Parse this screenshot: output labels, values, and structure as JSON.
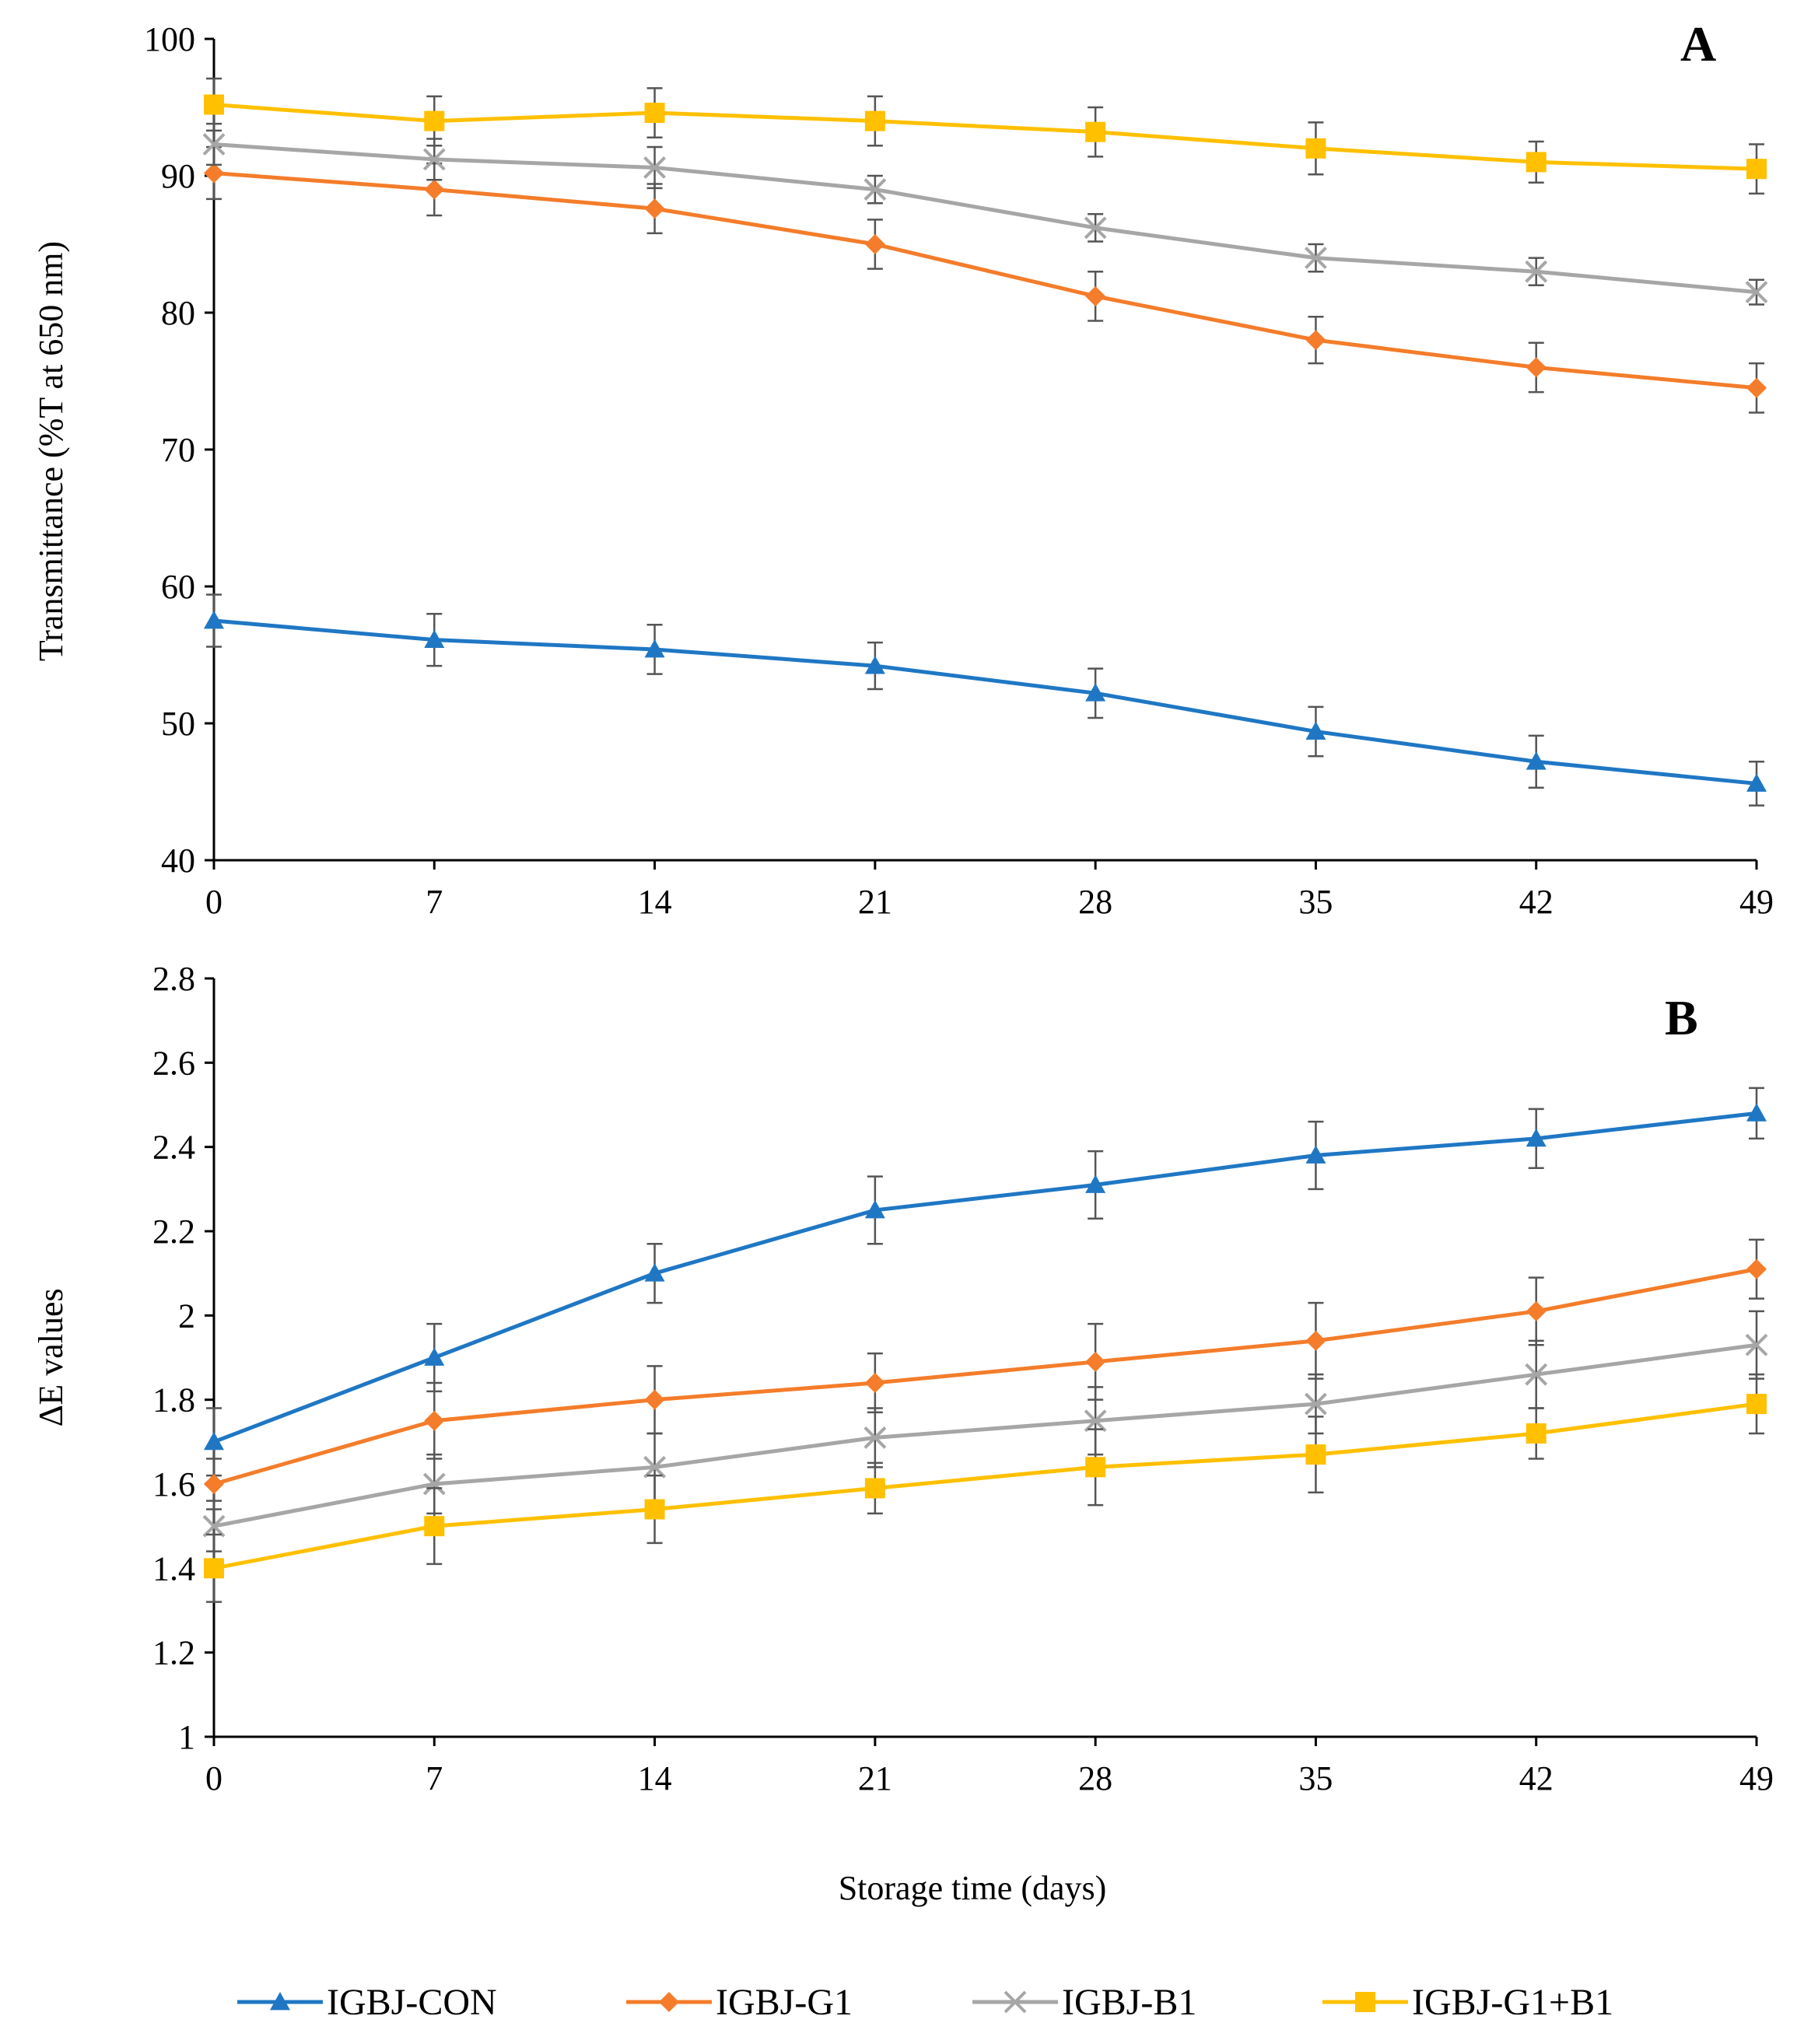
{
  "chart_data": [
    {
      "type": "line",
      "panel_label": "A",
      "title": "",
      "xlabel": "",
      "ylabel": "Transmittance (%T at 650 nm)",
      "x": [
        0,
        7,
        14,
        21,
        28,
        35,
        42,
        49
      ],
      "x_tick_labels": [
        "0",
        "7",
        "14",
        "21",
        "28",
        "35",
        "42",
        "49"
      ],
      "ylim": [
        40,
        100
      ],
      "y_ticks": [
        40,
        50,
        60,
        70,
        80,
        90,
        100
      ],
      "y_tick_labels": [
        "40",
        "50",
        "60",
        "70",
        "80",
        "90",
        "100"
      ],
      "grid": false,
      "series": [
        {
          "name": "IGBJ-CON",
          "marker": "triangle",
          "color": "#1f77c4",
          "values": [
            57.5,
            56.1,
            55.4,
            54.2,
            52.2,
            49.4,
            47.2,
            45.6
          ],
          "errors": [
            1.9,
            1.9,
            1.8,
            1.7,
            1.8,
            1.8,
            1.9,
            1.6
          ]
        },
        {
          "name": "IGBJ-G1",
          "marker": "diamond",
          "color": "#f47c2a",
          "values": [
            90.2,
            89.0,
            87.6,
            85.0,
            81.2,
            78.0,
            76.0,
            74.5
          ],
          "errors": [
            1.9,
            1.9,
            1.8,
            1.8,
            1.8,
            1.7,
            1.8,
            1.8
          ]
        },
        {
          "name": "IGBJ-B1",
          "marker": "x",
          "color": "#a6a6a6",
          "values": [
            92.3,
            91.2,
            90.6,
            89.0,
            86.2,
            84.0,
            83.0,
            81.5
          ],
          "errors": [
            1.5,
            1.5,
            1.5,
            1.0,
            1.0,
            1.0,
            1.0,
            0.9
          ]
        },
        {
          "name": "IGBJ-G1+B1",
          "marker": "square",
          "color": "#ffc000",
          "values": [
            95.2,
            94.0,
            94.6,
            94.0,
            93.2,
            92.0,
            91.0,
            90.5
          ],
          "errors": [
            1.9,
            1.8,
            1.8,
            1.8,
            1.8,
            1.9,
            1.5,
            1.8
          ]
        }
      ]
    },
    {
      "type": "line",
      "panel_label": "B",
      "title": "",
      "xlabel": "Storage time (days)",
      "ylabel": "∆E values",
      "x": [
        0,
        7,
        14,
        21,
        28,
        35,
        42,
        49
      ],
      "x_tick_labels": [
        "0",
        "7",
        "14",
        "21",
        "28",
        "35",
        "42",
        "49"
      ],
      "ylim": [
        1,
        2.8
      ],
      "y_ticks": [
        1,
        1.2,
        1.4,
        1.6,
        1.8,
        2,
        2.2,
        2.4,
        2.6,
        2.8
      ],
      "y_tick_labels": [
        "1",
        "1.2",
        "1.4",
        "1.6",
        "1.8",
        "2",
        "2.2",
        "2.4",
        "2.6",
        "2.8"
      ],
      "grid": false,
      "series": [
        {
          "name": "IGBJ-CON",
          "marker": "triangle",
          "color": "#1f77c4",
          "values": [
            1.7,
            1.9,
            2.1,
            2.25,
            2.31,
            2.38,
            2.42,
            2.48
          ],
          "errors": [
            0.08,
            0.08,
            0.07,
            0.08,
            0.08,
            0.08,
            0.07,
            0.06
          ]
        },
        {
          "name": "IGBJ-G1",
          "marker": "diamond",
          "color": "#f47c2a",
          "values": [
            1.6,
            1.75,
            1.8,
            1.84,
            1.89,
            1.94,
            2.01,
            2.11
          ],
          "errors": [
            0.06,
            0.09,
            0.08,
            0.07,
            0.09,
            0.09,
            0.08,
            0.07
          ]
        },
        {
          "name": "IGBJ-B1",
          "marker": "x",
          "color": "#a6a6a6",
          "values": [
            1.5,
            1.6,
            1.64,
            1.71,
            1.75,
            1.79,
            1.86,
            1.93
          ],
          "errors": [
            0.06,
            0.07,
            0.08,
            0.07,
            0.08,
            0.07,
            0.08,
            0.08
          ]
        },
        {
          "name": "IGBJ-G1+B1",
          "marker": "square",
          "color": "#ffc000",
          "values": [
            1.4,
            1.5,
            1.54,
            1.59,
            1.64,
            1.67,
            1.72,
            1.79
          ],
          "errors": [
            0.08,
            0.09,
            0.08,
            0.06,
            0.09,
            0.09,
            0.06,
            0.07
          ]
        }
      ]
    }
  ],
  "legend": {
    "placement": "bottom",
    "entries": [
      "IGBJ-CON",
      "IGBJ-G1",
      "IGBJ-B1",
      "IGBJ-G1+B1"
    ]
  }
}
